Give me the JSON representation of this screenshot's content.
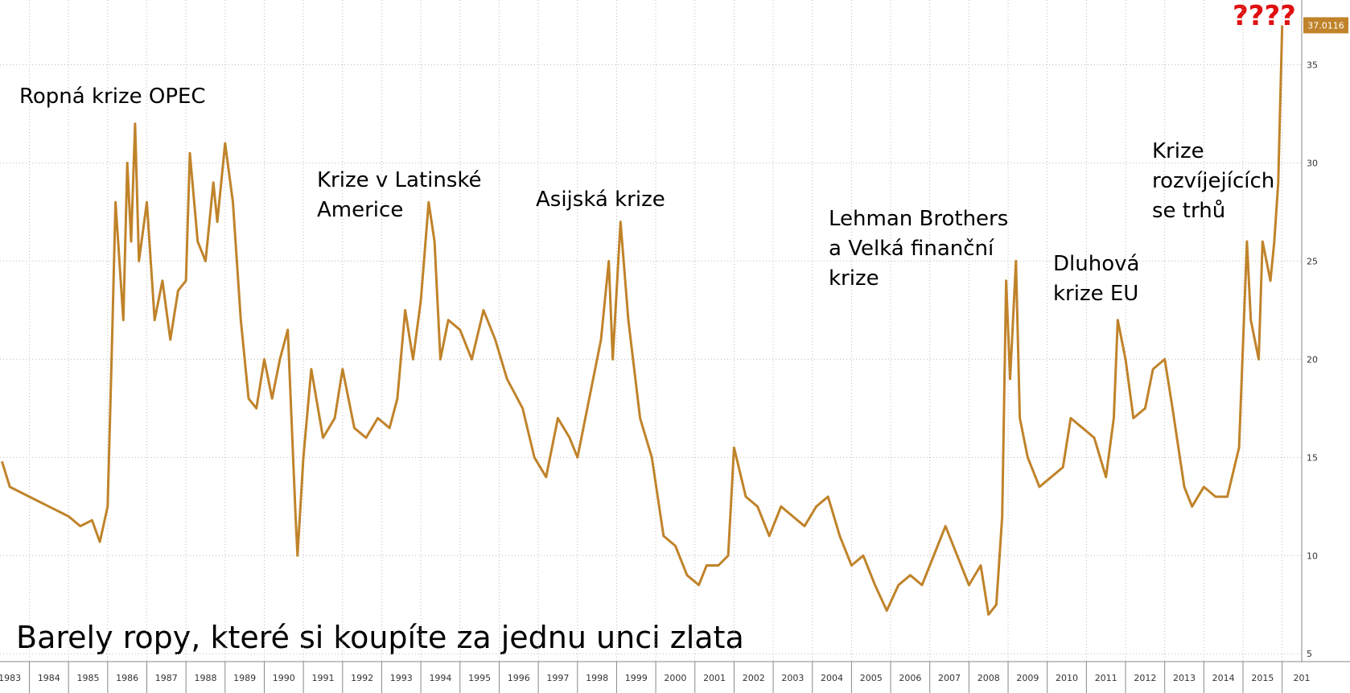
{
  "chart_data": {
    "type": "line",
    "title": "Barely ropy, které si koupíte za jednu unci zlata",
    "marker": "????",
    "last_value_label": "37.0116",
    "color": "#c0832a",
    "grid": true,
    "xlim": [
      1983.25,
      2016.5
    ],
    "ylim": [
      4.6,
      38.3
    ],
    "yticks": [
      5,
      10,
      15,
      20,
      25,
      30,
      35
    ],
    "xticks": [
      1983,
      1984,
      1985,
      1986,
      1987,
      1988,
      1989,
      1990,
      1991,
      1992,
      1993,
      1994,
      1995,
      1996,
      1997,
      1998,
      1999,
      2000,
      2001,
      2002,
      2003,
      2004,
      2005,
      2006,
      2007,
      2008,
      2009,
      2010,
      2011,
      2012,
      2013,
      2014,
      2015,
      {
        "value": 2016,
        "label": "201"
      }
    ],
    "annotations": [
      {
        "lines": [
          "Ropná krize OPEC"
        ]
      },
      {
        "lines": [
          "Krize v Latinské",
          "Americe"
        ]
      },
      {
        "lines": [
          "Asijská krize"
        ]
      },
      {
        "lines": [
          "Lehman Brothers",
          "a Velká finanční",
          "krize"
        ]
      },
      {
        "lines": [
          "Dluhová",
          "krize EU"
        ]
      },
      {
        "lines": [
          "Krize",
          "rozvíjejících",
          "se trhů"
        ]
      }
    ],
    "x": [
      1983.3,
      1983.5,
      1984.0,
      1984.5,
      1985.0,
      1985.3,
      1985.6,
      1985.8,
      1986.0,
      1986.1,
      1986.2,
      1986.4,
      1986.5,
      1986.6,
      1986.7,
      1986.8,
      1987.0,
      1987.2,
      1987.4,
      1987.6,
      1987.8,
      1988.0,
      1988.1,
      1988.3,
      1988.5,
      1988.7,
      1988.8,
      1989.0,
      1989.2,
      1989.4,
      1989.6,
      1989.8,
      1990.0,
      1990.2,
      1990.4,
      1990.6,
      1990.8,
      1990.85,
      1991.0,
      1991.2,
      1991.5,
      1991.8,
      1992.0,
      1992.3,
      1992.6,
      1992.9,
      1993.2,
      1993.4,
      1993.6,
      1993.8,
      1994.0,
      1994.2,
      1994.35,
      1994.5,
      1994.7,
      1995.0,
      1995.3,
      1995.6,
      1995.9,
      1996.2,
      1996.6,
      1996.9,
      1997.2,
      1997.5,
      1997.8,
      1998.0,
      1998.3,
      1998.6,
      1998.8,
      1998.9,
      1999.1,
      1999.3,
      1999.6,
      1999.9,
      2000.2,
      2000.5,
      2000.8,
      2001.1,
      2001.3,
      2001.6,
      2001.85,
      2002.0,
      2002.3,
      2002.6,
      2002.9,
      2003.2,
      2003.5,
      2003.8,
      2004.1,
      2004.4,
      2004.7,
      2005.0,
      2005.3,
      2005.6,
      2005.9,
      2006.2,
      2006.5,
      2006.8,
      2007.1,
      2007.4,
      2007.7,
      2008.0,
      2008.3,
      2008.5,
      2008.7,
      2008.85,
      2008.95,
      2009.05,
      2009.2,
      2009.3,
      2009.5,
      2009.8,
      2010.1,
      2010.4,
      2010.6,
      2010.9,
      2011.2,
      2011.5,
      2011.7,
      2011.8,
      2012.0,
      2012.2,
      2012.5,
      2012.7,
      2013.0,
      2013.2,
      2013.5,
      2013.7,
      2014.0,
      2014.3,
      2014.6,
      2014.9,
      2015.1,
      2015.2,
      2015.4,
      2015.5,
      2015.7,
      2015.8,
      2015.9,
      2016.0
    ],
    "values": [
      14.8,
      13.5,
      13,
      12.5,
      12,
      11.5,
      11.8,
      10.7,
      12.5,
      20,
      28,
      22,
      30,
      26,
      32,
      25,
      28,
      22,
      24,
      21,
      23.5,
      24,
      30.5,
      26,
      25,
      29,
      27,
      31,
      28,
      22,
      18,
      17.5,
      20,
      18,
      20,
      21.5,
      12,
      10,
      15,
      19.5,
      16,
      17,
      19.5,
      16.5,
      16,
      17,
      16.5,
      18,
      22.5,
      20,
      23,
      28,
      26,
      20,
      22,
      21.5,
      20,
      22.5,
      21,
      19,
      17.5,
      15,
      14,
      17,
      16,
      15,
      18,
      21,
      25,
      20,
      27,
      22,
      17,
      15,
      11,
      10.5,
      9,
      8.5,
      9.5,
      9.5,
      10,
      15.5,
      13,
      12.5,
      11,
      12.5,
      12,
      11.5,
      12.5,
      13,
      11,
      9.5,
      10,
      8.5,
      7.2,
      8.5,
      9,
      8.5,
      10,
      11.5,
      10,
      8.5,
      9.5,
      7,
      7.5,
      12,
      24,
      19,
      25,
      17,
      15,
      13.5,
      14,
      14.5,
      17,
      16.5,
      16,
      14,
      17,
      22,
      20,
      17,
      17.5,
      19.5,
      20,
      17.5,
      13.5,
      12.5,
      13.5,
      13,
      13,
      15.5,
      26,
      22,
      20,
      26,
      24,
      26,
      29,
      37.0116
    ]
  }
}
